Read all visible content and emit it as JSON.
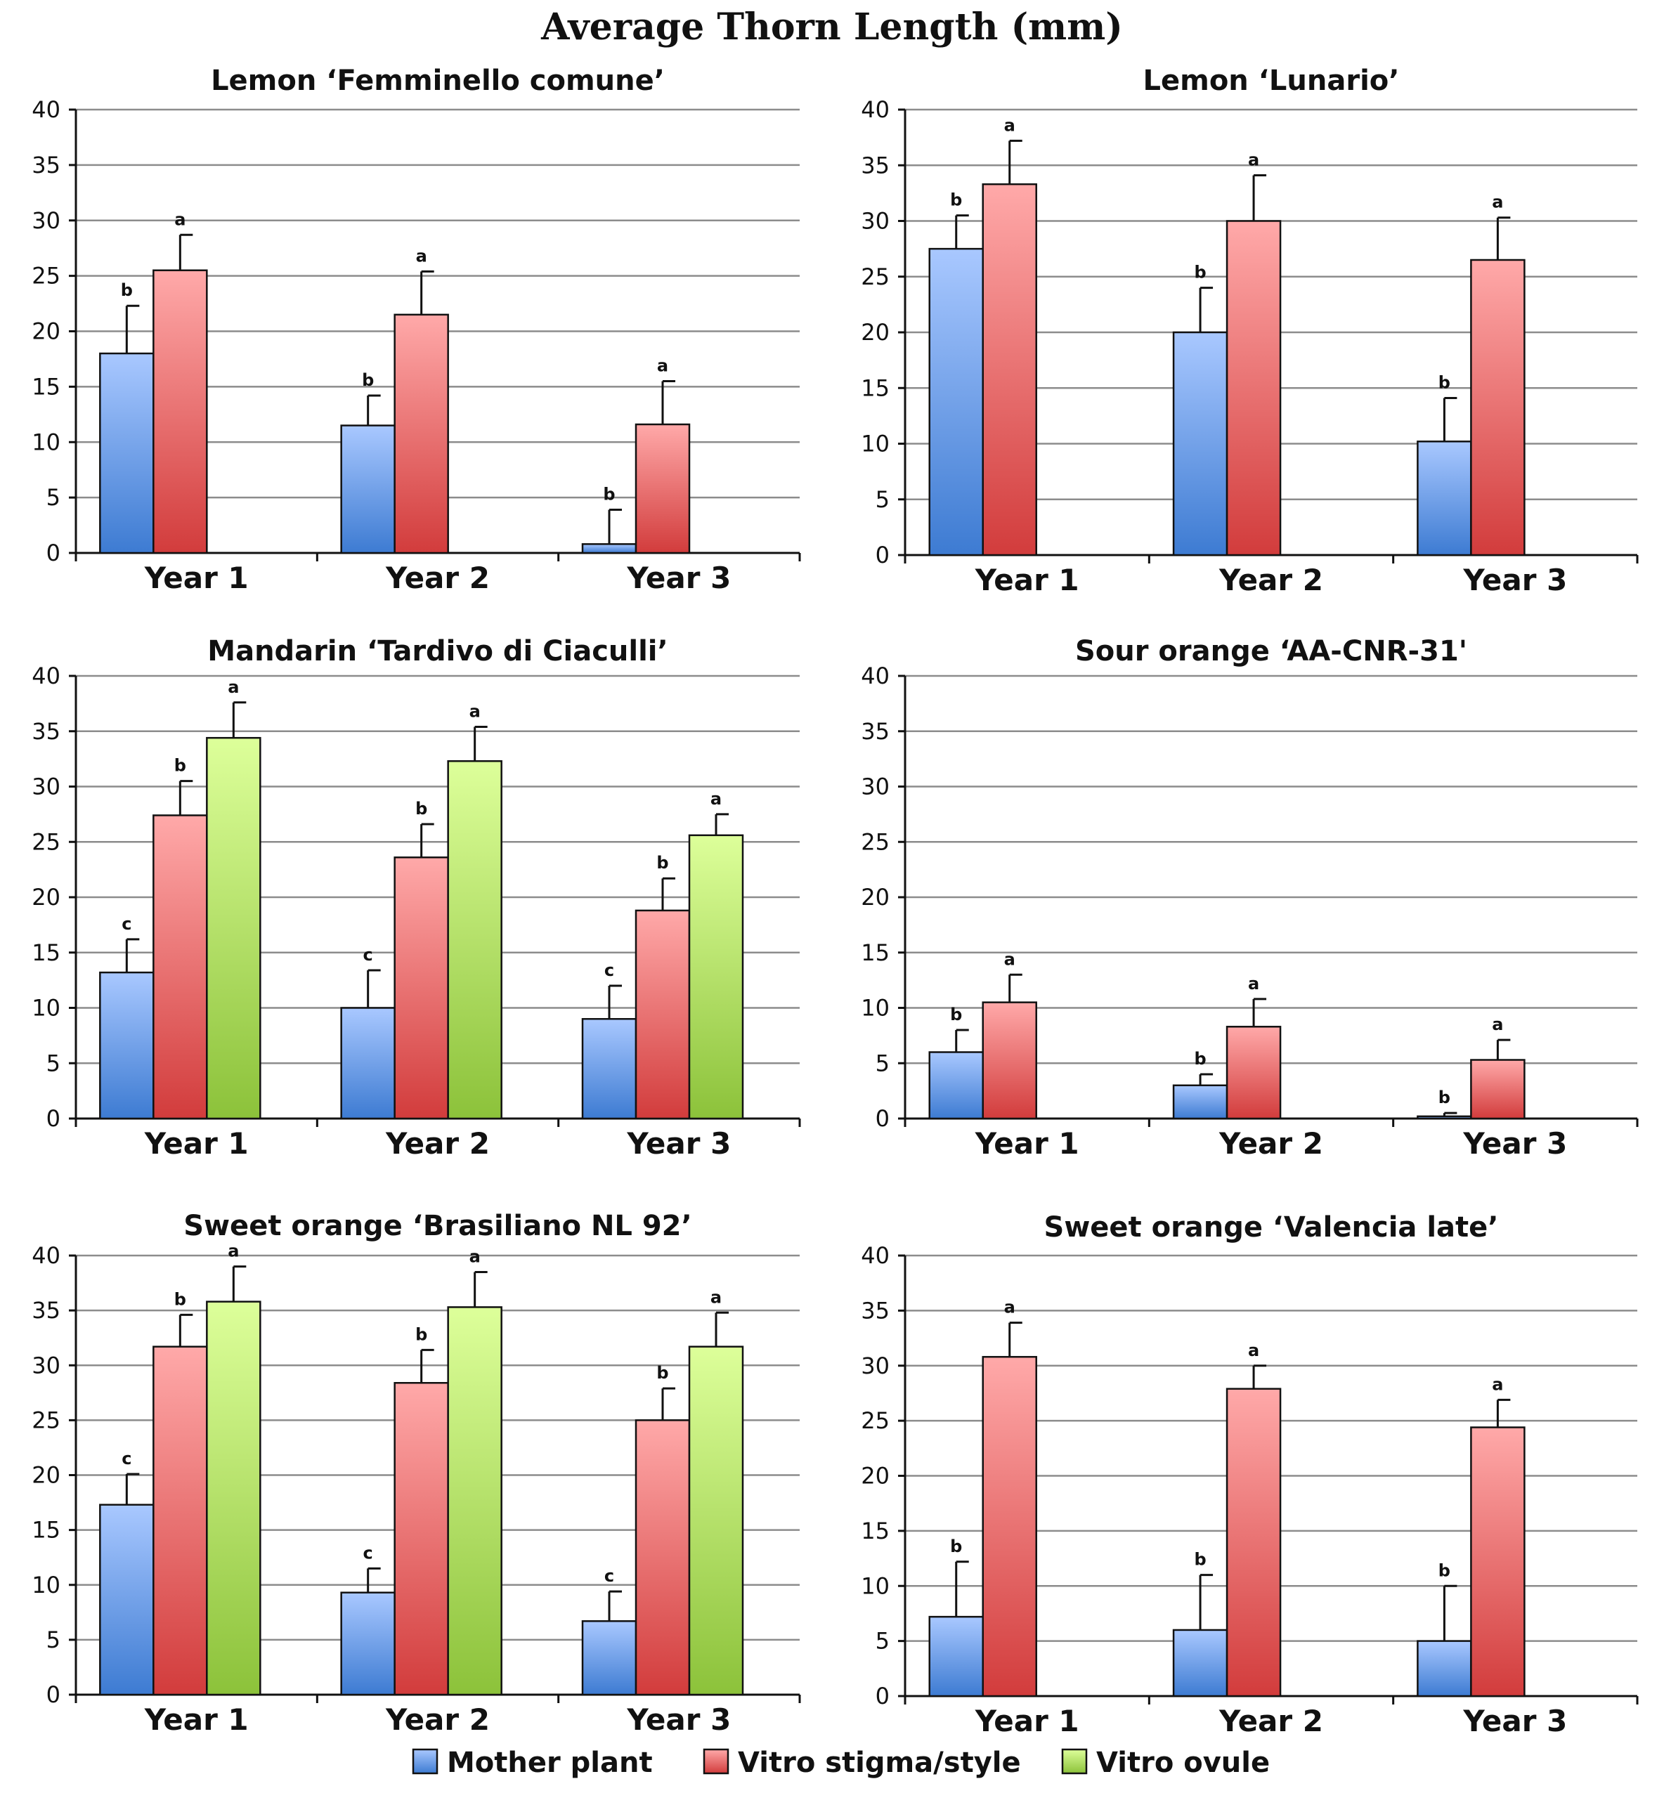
{
  "title": "Average Thorn Length (mm)",
  "series_colors": {
    "Mother plant": [
      "#a9c8ff",
      "#3d7bd2"
    ],
    "Vitro stigma/style": [
      "#ffa9a9",
      "#d23c3c"
    ],
    "Vitro ovule": [
      "#ddff9a",
      "#8cc23a"
    ]
  },
  "legend": [
    {
      "name": "Mother plant",
      "label": "Mother plant"
    },
    {
      "name": "Vitro stigma/style",
      "label": "Vitro stigma/style"
    },
    {
      "name": "Vitro ovule",
      "label": "Vitro ovule"
    }
  ],
  "chart_data": [
    {
      "type": "bar",
      "title": "Lemon ‘Femminello comune’",
      "categories": [
        "Year 1",
        "Year 2",
        "Year 3"
      ],
      "ylim": [
        0,
        40
      ],
      "yticks": [
        0,
        5,
        10,
        15,
        20,
        25,
        30,
        35,
        40
      ],
      "ytick_labels": [
        "0",
        "5",
        "10",
        "15",
        "20",
        "25",
        "30",
        "35",
        "40"
      ],
      "series": [
        {
          "name": "Mother plant",
          "values": [
            18,
            11.5,
            0.8
          ],
          "errors": [
            4.3,
            2.7,
            3.1
          ],
          "letters": [
            "b",
            "b",
            "b"
          ]
        },
        {
          "name": "Vitro stigma/style",
          "values": [
            25.5,
            21.5,
            11.6
          ],
          "errors": [
            3.2,
            3.9,
            3.9
          ],
          "letters": [
            "a",
            "a",
            "a"
          ]
        }
      ]
    },
    {
      "type": "bar",
      "title": "Lemon ‘Lunario’",
      "categories": [
        "Year 1",
        "Year 2",
        "Year 3"
      ],
      "ylim": [
        0,
        40
      ],
      "yticks": [
        0,
        5,
        10,
        15,
        20,
        25,
        30,
        35,
        40
      ],
      "ytick_labels": [
        "0",
        "5",
        "10",
        "15",
        "20",
        "25",
        "30",
        "35",
        "40"
      ],
      "series": [
        {
          "name": "Mother plant",
          "values": [
            27.5,
            20,
            10.2
          ],
          "errors": [
            3,
            4,
            3.9
          ],
          "letters": [
            "b",
            "b",
            "b"
          ]
        },
        {
          "name": "Vitro stigma/style",
          "values": [
            33.3,
            30,
            26.5
          ],
          "errors": [
            3.9,
            4.1,
            3.8
          ],
          "letters": [
            "a",
            "a",
            "a"
          ]
        }
      ]
    },
    {
      "type": "bar",
      "title": "Mandarin ‘Tardivo di Ciaculli’",
      "categories": [
        "Year 1",
        "Year 2",
        "Year 3"
      ],
      "ylim": [
        0,
        40
      ],
      "yticks": [
        0,
        5,
        10,
        15,
        20,
        25,
        30,
        35,
        40
      ],
      "ytick_labels": [
        "0",
        "5",
        "10",
        "15",
        "20",
        "25",
        "30",
        "35",
        "40"
      ],
      "series": [
        {
          "name": "Mother plant",
          "values": [
            13.2,
            10,
            9
          ],
          "errors": [
            3,
            3.4,
            3
          ],
          "letters": [
            "c",
            "c",
            "c"
          ]
        },
        {
          "name": "Vitro stigma/style",
          "values": [
            27.4,
            23.6,
            18.8
          ],
          "errors": [
            3.1,
            3,
            2.9
          ],
          "letters": [
            "b",
            "b",
            "b"
          ]
        },
        {
          "name": "Vitro ovule",
          "values": [
            34.4,
            32.3,
            25.6
          ],
          "errors": [
            3.2,
            3.1,
            1.9
          ],
          "letters": [
            "a",
            "a",
            "a"
          ]
        }
      ]
    },
    {
      "type": "bar",
      "title": "Sour orange ‘AA-CNR-31'",
      "categories": [
        "Year 1",
        "Year 2",
        "Year 3"
      ],
      "ylim": [
        0,
        40
      ],
      "yticks": [
        0,
        5,
        10,
        15,
        20,
        25,
        30,
        35,
        40
      ],
      "ytick_labels": [
        "0",
        "5",
        "10",
        "15",
        "20",
        "25",
        "30",
        "35",
        "40"
      ],
      "series": [
        {
          "name": "Mother plant",
          "values": [
            6,
            3,
            0.2
          ],
          "errors": [
            2,
            1,
            0.3
          ],
          "letters": [
            "b",
            "b",
            "b"
          ]
        },
        {
          "name": "Vitro stigma/style",
          "values": [
            10.5,
            8.3,
            5.3
          ],
          "errors": [
            2.5,
            2.5,
            1.8
          ],
          "letters": [
            "a",
            "a",
            "a"
          ]
        }
      ]
    },
    {
      "type": "bar",
      "title": "Sweet orange ‘Brasiliano NL 92’",
      "categories": [
        "Year 1",
        "Year 2",
        "Year 3"
      ],
      "ylim": [
        0,
        40
      ],
      "yticks": [
        0,
        5,
        10,
        15,
        20,
        25,
        30,
        35,
        40
      ],
      "ytick_labels": [
        "0",
        "5",
        "10",
        "15",
        "20",
        "25",
        "30",
        "35",
        "40"
      ],
      "series": [
        {
          "name": "Mother plant",
          "values": [
            17.3,
            9.3,
            6.7
          ],
          "errors": [
            2.8,
            2.2,
            2.7
          ],
          "letters": [
            "c",
            "c",
            "c"
          ]
        },
        {
          "name": "Vitro stigma/style",
          "values": [
            31.7,
            28.4,
            25
          ],
          "errors": [
            2.9,
            3,
            2.9
          ],
          "letters": [
            "b",
            "b",
            "b"
          ]
        },
        {
          "name": "Vitro ovule",
          "values": [
            35.8,
            35.3,
            31.7
          ],
          "errors": [
            3.2,
            3.2,
            3.1
          ],
          "letters": [
            "a",
            "a",
            "a"
          ]
        }
      ]
    },
    {
      "type": "bar",
      "title": "Sweet orange ‘Valencia late’",
      "categories": [
        "Year 1",
        "Year 2",
        "Year 3"
      ],
      "ylim": [
        0,
        40
      ],
      "yticks": [
        0,
        5,
        10,
        15,
        20,
        25,
        30,
        35,
        40
      ],
      "ytick_labels": [
        "0",
        "5",
        "10",
        "15",
        "20",
        "25",
        "30",
        "35",
        "40"
      ],
      "series": [
        {
          "name": "Mother plant",
          "values": [
            7.2,
            6,
            5
          ],
          "errors": [
            5,
            5,
            5
          ],
          "letters": [
            "b",
            "b",
            "b"
          ]
        },
        {
          "name": "Vitro stigma/style",
          "values": [
            30.8,
            27.9,
            24.4
          ],
          "errors": [
            3.1,
            2.1,
            2.5
          ],
          "letters": [
            "a",
            "a",
            "a"
          ]
        }
      ]
    }
  ]
}
